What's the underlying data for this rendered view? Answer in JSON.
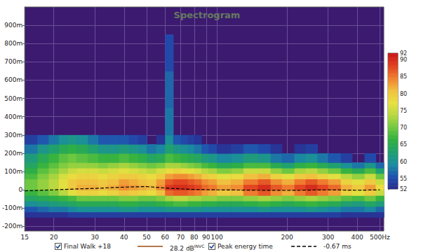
{
  "chart_data": {
    "type": "heatmap",
    "title": "Spectrogram",
    "log": "x",
    "grid": true,
    "xlim": [
      15,
      520
    ],
    "xticks": [
      15,
      20,
      30,
      40,
      50,
      60,
      70,
      80,
      90,
      100,
      200,
      300,
      400,
      {
        "value": 500,
        "label": "500Hz"
      }
    ],
    "ylim": [
      -225,
      1000
    ],
    "yticks": [
      {
        "value": -200,
        "label": "-200m"
      },
      {
        "value": -100,
        "label": "-100m"
      },
      0,
      {
        "value": 100,
        "label": "100m"
      },
      {
        "value": 200,
        "label": "200m"
      },
      {
        "value": 300,
        "label": "300m"
      },
      {
        "value": 400,
        "label": "400m"
      },
      {
        "value": 500,
        "label": "500m"
      },
      {
        "value": 600,
        "label": "600m"
      },
      {
        "value": 700,
        "label": "700m"
      },
      {
        "value": 800,
        "label": "800m"
      },
      {
        "value": 900,
        "label": "900m"
      }
    ],
    "color_range": [
      52,
      92
    ],
    "color_ticks": [
      52,
      55,
      60,
      65,
      70,
      75,
      80,
      85,
      90,
      92
    ],
    "x_bins": [
      15,
      17,
      19,
      21,
      23,
      25,
      28,
      31,
      34,
      38,
      42,
      46,
      50,
      55,
      60,
      65,
      70,
      75,
      80,
      86,
      92,
      100,
      115,
      130,
      150,
      170,
      190,
      215,
      240,
      270,
      300,
      340,
      380,
      430,
      480,
      520
    ],
    "y_bins": [
      -150,
      -120,
      -90,
      -60,
      -30,
      0,
      30,
      60,
      90,
      120,
      150,
      200,
      250,
      300,
      450,
      650,
      850
    ],
    "series": [
      {
        "name": "Final Walk +18",
        "type": "heatmap",
        "color": "#9a4a12",
        "cells": [
          [
            53,
            53,
            53,
            53,
            54,
            54,
            54,
            54,
            54,
            54,
            54,
            54,
            54,
            54,
            54,
            54,
            54,
            54,
            54,
            54,
            54,
            54,
            54,
            54,
            54,
            54,
            54,
            54,
            54,
            54,
            54,
            53,
            53,
            53,
            53
          ],
          [
            56,
            57,
            58,
            58,
            59,
            60,
            60,
            60,
            60,
            61,
            61,
            60,
            60,
            60,
            61,
            61,
            61,
            61,
            61,
            60,
            60,
            60,
            60,
            60,
            61,
            60,
            60,
            60,
            61,
            60,
            59,
            58,
            58,
            59,
            57
          ],
          [
            60,
            61,
            62,
            63,
            64,
            65,
            65,
            65,
            65,
            66,
            66,
            65,
            65,
            66,
            67,
            68,
            68,
            67,
            67,
            66,
            66,
            65,
            65,
            66,
            67,
            66,
            65,
            66,
            67,
            66,
            65,
            63,
            62,
            64,
            62
          ],
          [
            64,
            65,
            66,
            67,
            68,
            70,
            70,
            70,
            70,
            71,
            71,
            70,
            70,
            71,
            73,
            74,
            74,
            73,
            73,
            72,
            72,
            71,
            71,
            72,
            73,
            72,
            71,
            72,
            73,
            72,
            71,
            69,
            68,
            70,
            67
          ],
          [
            67,
            69,
            71,
            74,
            77,
            79,
            79,
            78,
            79,
            81,
            80,
            79,
            78,
            81,
            86,
            87,
            87,
            86,
            85,
            83,
            82,
            80,
            81,
            85,
            87,
            84,
            82,
            85,
            87,
            85,
            83,
            79,
            77,
            80,
            75
          ],
          [
            70,
            72,
            74,
            77,
            80,
            82,
            82,
            81,
            82,
            84,
            83,
            82,
            81,
            84,
            89,
            90,
            90,
            89,
            88,
            86,
            85,
            83,
            84,
            88,
            90,
            87,
            85,
            88,
            90,
            88,
            86,
            82,
            80,
            83,
            78
          ],
          [
            70,
            72,
            74,
            77,
            80,
            81,
            81,
            80,
            81,
            83,
            82,
            81,
            80,
            83,
            87,
            88,
            88,
            87,
            86,
            84,
            83,
            81,
            82,
            85,
            87,
            84,
            82,
            85,
            87,
            85,
            83,
            79,
            77,
            80,
            75
          ],
          [
            68,
            71,
            73,
            76,
            78,
            79,
            79,
            78,
            79,
            80,
            80,
            79,
            78,
            80,
            83,
            84,
            84,
            83,
            82,
            80,
            79,
            77,
            78,
            81,
            82,
            79,
            77,
            80,
            81,
            79,
            77,
            74,
            72,
            75,
            70
          ],
          [
            66,
            69,
            71,
            73,
            75,
            76,
            76,
            75,
            76,
            77,
            76,
            75,
            74,
            76,
            78,
            79,
            78,
            77,
            76,
            74,
            73,
            71,
            72,
            75,
            75,
            72,
            70,
            73,
            74,
            72,
            70,
            67,
            65,
            68,
            63
          ],
          [
            64,
            67,
            69,
            71,
            72,
            72,
            72,
            71,
            72,
            73,
            72,
            71,
            70,
            71,
            73,
            73,
            72,
            71,
            70,
            68,
            67,
            65,
            66,
            68,
            68,
            65,
            63,
            66,
            67,
            65,
            63,
            60,
            58,
            61,
            57
          ],
          [
            62,
            65,
            67,
            69,
            70,
            69,
            68,
            67,
            67,
            68,
            67,
            66,
            64,
            65,
            68,
            67,
            66,
            65,
            64,
            62,
            61,
            59,
            60,
            62,
            61,
            58,
            57,
            59,
            60,
            58,
            56,
            54,
            null,
            55,
            null
          ],
          [
            58,
            61,
            63,
            65,
            66,
            65,
            63,
            61,
            61,
            62,
            61,
            60,
            58,
            59,
            63,
            61,
            60,
            59,
            58,
            56,
            55,
            53,
            54,
            56,
            55,
            53,
            null,
            53,
            54,
            null,
            null,
            null,
            null,
            null,
            null
          ],
          [
            54,
            56,
            58,
            60,
            61,
            60,
            58,
            56,
            56,
            56,
            55,
            54,
            null,
            53,
            60,
            56,
            55,
            54,
            53,
            null,
            null,
            null,
            null,
            null,
            null,
            null,
            null,
            null,
            null,
            null,
            null,
            null,
            null,
            null,
            null
          ],
          [
            null,
            null,
            null,
            null,
            null,
            null,
            null,
            null,
            null,
            null,
            null,
            null,
            null,
            null,
            58,
            null,
            null,
            null,
            null,
            null,
            null,
            null,
            null,
            null,
            null,
            null,
            null,
            null,
            null,
            null,
            null,
            null,
            null,
            null,
            null
          ],
          [
            null,
            null,
            null,
            null,
            null,
            null,
            null,
            null,
            null,
            null,
            null,
            null,
            null,
            null,
            57,
            null,
            null,
            null,
            null,
            null,
            null,
            null,
            null,
            null,
            null,
            null,
            null,
            null,
            null,
            null,
            null,
            null,
            null,
            null,
            null
          ],
          [
            null,
            null,
            null,
            null,
            null,
            null,
            null,
            null,
            null,
            null,
            null,
            null,
            null,
            null,
            55,
            null,
            null,
            null,
            null,
            null,
            null,
            null,
            null,
            null,
            null,
            null,
            null,
            null,
            null,
            null,
            null,
            null,
            null,
            null,
            null
          ]
        ]
      },
      {
        "name": "Peak energy time",
        "type": "line",
        "line_style": "dashed",
        "color": "#000000",
        "x": [
          15,
          20,
          25,
          30,
          40,
          50,
          60,
          80,
          100,
          150,
          200,
          300,
          400,
          500
        ],
        "values": [
          -5,
          0,
          5,
          8,
          15,
          18,
          10,
          2,
          0,
          -2,
          -3,
          0,
          -2,
          0
        ]
      }
    ],
    "annotations": [
      {
        "text": "28.2 dB",
        "sup": "INVC"
      },
      {
        "text": "-0.67 ms"
      }
    ]
  }
}
